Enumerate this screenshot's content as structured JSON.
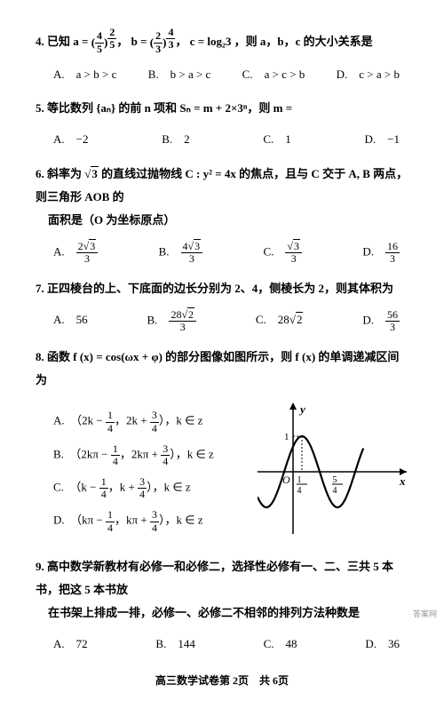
{
  "q4": {
    "stem_prefix": "4. 已知 ",
    "a_frac_num": "4",
    "a_frac_den": "5",
    "a_exp_num": "2",
    "a_exp_den": "5",
    "b_frac_num": "2",
    "b_frac_den": "3",
    "b_exp_num": "4",
    "b_exp_den": "3",
    "c_text": "c = log₂3",
    "stem_suffix": "，则 a，b，c 的大小关系是",
    "options": {
      "A": "A.　a > b > c",
      "B": "B.　b > a > c",
      "C": "C.　a > c > b",
      "D": "D.　c > a > b"
    }
  },
  "q5": {
    "stem": "5. 等比数列 {aₙ} 的前 n 项和 Sₙ = m + 2×3ⁿ，则 m =",
    "options": {
      "A": "A.　−2",
      "B": "B.　2",
      "C": "C.　1",
      "D": "D.　−1"
    }
  },
  "q6": {
    "stem_a": "6. 斜率为 ",
    "stem_sqrt": "3",
    "stem_b": " 的直线过抛物线 C : y² = 4x 的焦点，且与 C 交于 A, B 两点，则三角形 AOB 的",
    "stem_c": "面积是（O 为坐标原点）",
    "opts": {
      "A_label": "A.",
      "A_num": "2",
      "A_sqrt": "3",
      "A_den": "3",
      "B_label": "B.",
      "B_num": "4",
      "B_sqrt": "3",
      "B_den": "3",
      "C_label": "C.",
      "C_num": "",
      "C_sqrt": "3",
      "C_den": "3",
      "D_label": "D.",
      "D_num": "16",
      "D_den": "3"
    }
  },
  "q7": {
    "stem": "7. 正四棱台的上、下底面的边长分别为 2、4，侧棱长为 2，则其体积为",
    "opts": {
      "A": "A.　56",
      "B_label": "B.",
      "B_num": "28",
      "B_sqrt": "2",
      "B_den": "3",
      "C_label": "C.　28",
      "C_sqrt": "2",
      "D_label": "D.",
      "D_num": "56",
      "D_den": "3"
    }
  },
  "q8": {
    "stem": "8. 函数 f (x) = cos(ωx + φ) 的部分图像如图所示，则 f (x) 的单调递减区间为",
    "opts": {
      "A_pre": "A.　（2k − ",
      "A_f1n": "1",
      "A_f1d": "4",
      "A_mid": "，2k + ",
      "A_f2n": "3",
      "A_f2d": "4",
      "A_suf": "），k ∈ z",
      "B_pre": "B.　（2kπ − ",
      "B_f1n": "1",
      "B_f1d": "4",
      "B_mid": "，2kπ + ",
      "B_f2n": "3",
      "B_f2d": "4",
      "B_suf": "），k ∈ z",
      "C_pre": "C.　（k − ",
      "C_f1n": "1",
      "C_f1d": "4",
      "C_mid": "，k + ",
      "C_f2n": "3",
      "C_f2d": "4",
      "C_suf": "），k ∈ z",
      "D_pre": "D.　（kπ − ",
      "D_f1n": "1",
      "D_f1d": "4",
      "D_mid": "，kπ + ",
      "D_f2n": "3",
      "D_f2d": "4",
      "D_suf": "），k ∈ z"
    },
    "graph": {
      "axis_color": "#000000",
      "curve_color": "#000000",
      "curve_width": 2.2,
      "y_label": "y",
      "x_label": "x",
      "origin_label": "O",
      "tick1_n": "1",
      "tick1_d": "4",
      "tick2_n": "5",
      "tick2_d": "4",
      "y_tick": "1",
      "xlim": [
        -1.0,
        2.0
      ],
      "ylim": [
        -1.4,
        1.4
      ],
      "amplitude": 1.0,
      "period": 2.0,
      "phase_x_at_peak": 0.25
    }
  },
  "q9": {
    "stem_a": "9. 高中数学新教材有必修一和必修二，选择性必修有一、二、三共 5 本书，把这 5 本书放",
    "stem_b": "在书架上排成一排，必修一、必修二不相邻的排列方法种数是",
    "options": {
      "A": "A.　72",
      "B": "B.　144",
      "C": "C.　48",
      "D": "D.　36"
    }
  },
  "footer": "高三数学试卷第 2页　共 6页",
  "watermark": "答案网"
}
